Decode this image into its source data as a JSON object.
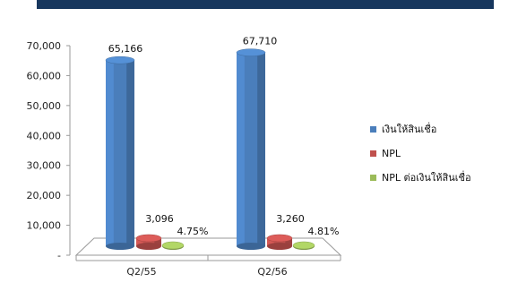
{
  "colors": {
    "header": "#17375e",
    "loan": "#4a7ebb",
    "npl": "#c0504d",
    "ratio": "#9bbb59"
  },
  "legend": [
    {
      "label": "เงินให้สินเชื่อ",
      "color": "#4a7ebb"
    },
    {
      "label": "NPL",
      "color": "#c0504d"
    },
    {
      "label": "NPL ต่อเงินให้สินเชื่อ",
      "color": "#9bbb59"
    }
  ],
  "chart_data": {
    "type": "bar",
    "style": "3d-cylinder",
    "categories": [
      "Q2/55",
      "Q2/56"
    ],
    "y_ticks": [
      "70,000",
      "60,000",
      "50,000",
      "40,000",
      "30,000",
      "20,000",
      "10,000",
      "-"
    ],
    "ylim": [
      0,
      70000
    ],
    "grid": false,
    "legend_position": "right",
    "series": [
      {
        "name": "เงินให้สินเชื่อ",
        "values": [
          65166,
          67710
        ],
        "labels": [
          "65,166",
          "67,710"
        ],
        "color": "#4a7ebb"
      },
      {
        "name": "NPL",
        "values": [
          3096,
          3260
        ],
        "labels": [
          "3,096",
          "3,260"
        ],
        "color": "#c0504d"
      },
      {
        "name": "NPL ต่อเงินให้สินเชื่อ",
        "values": [
          4.75,
          4.81
        ],
        "labels": [
          "4.75%",
          "4.81%"
        ],
        "color": "#9bbb59"
      }
    ]
  }
}
